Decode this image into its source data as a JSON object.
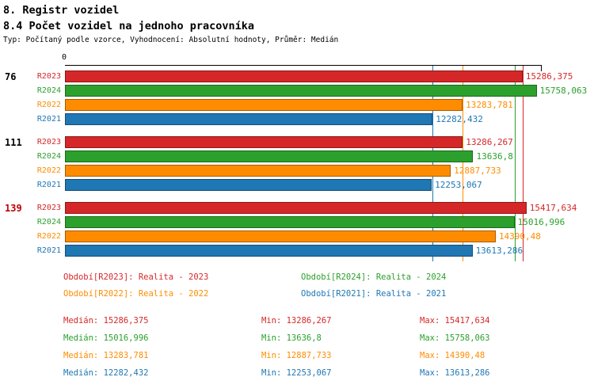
{
  "header": {
    "title": "8. Registr vozidel",
    "subtitle": "8.4 Počet vozidel na jednoho pracovníka",
    "meta": "Typ: Počítaný podle vzorce, Vyhodnocení: Absolutní hodnoty, Průměr: Medián"
  },
  "chart_data": {
    "type": "bar",
    "orientation": "horizontal",
    "axis_origin_label": "0",
    "xlim": [
      0,
      15900
    ],
    "grid": false,
    "legend_position": "bottom",
    "series": [
      {
        "name": "R2023",
        "color": "#d62728"
      },
      {
        "name": "R2024",
        "color": "#2ca02c"
      },
      {
        "name": "R2022",
        "color": "#ff8c00"
      },
      {
        "name": "R2021",
        "color": "#1f77b4"
      }
    ],
    "groups": [
      {
        "label": "76",
        "label_color": "#000000",
        "values": [
          15286.375,
          15758.063,
          13283.781,
          12282.432
        ],
        "value_labels": [
          "15286,375",
          "15758,063",
          "13283,781",
          "12282,432"
        ]
      },
      {
        "label": "111",
        "label_color": "#000000",
        "values": [
          13286.267,
          13636.8,
          12887.733,
          12253.067
        ],
        "value_labels": [
          "13286,267",
          "13636,8",
          "12887,733",
          "12253,067"
        ]
      },
      {
        "label": "139",
        "label_color": "#c00000",
        "values": [
          15417.634,
          15016.996,
          14390.48,
          13613.286
        ],
        "value_labels": [
          "15417,634",
          "15016,996",
          "14390,48",
          "13613,286"
        ]
      }
    ],
    "median_lines": [
      15286.375,
      15016.996,
      13283.781,
      12282.432
    ]
  },
  "legend": {
    "columns": [
      [
        {
          "label": "Období[R2023]: Realita - 2023",
          "color": "#d62728"
        },
        {
          "label": "Období[R2022]: Realita - 2022",
          "color": "#ff8c00"
        }
      ],
      [
        {
          "label": "Období[R2024]: Realita - 2024",
          "color": "#2ca02c"
        },
        {
          "label": "Období[R2021]: Realita - 2021",
          "color": "#1f77b4"
        }
      ]
    ]
  },
  "stats": {
    "rows": [
      {
        "color": "#d62728",
        "median_label": "Medián:",
        "median": "15286,375",
        "min_label": "Min:",
        "min": "13286,267",
        "max_label": "Max:",
        "max": "15417,634"
      },
      {
        "color": "#2ca02c",
        "median_label": "Medián:",
        "median": "15016,996",
        "min_label": "Min:",
        "min": "13636,8",
        "max_label": "Max:",
        "max": "15758,063"
      },
      {
        "color": "#ff8c00",
        "median_label": "Medián:",
        "median": "13283,781",
        "min_label": "Min:",
        "min": "12887,733",
        "max_label": "Max:",
        "max": "14390,48"
      },
      {
        "color": "#1f77b4",
        "median_label": "Medián:",
        "median": "12282,432",
        "min_label": "Min:",
        "min": "12253,067",
        "max_label": "Max:",
        "max": "13613,286"
      }
    ]
  }
}
